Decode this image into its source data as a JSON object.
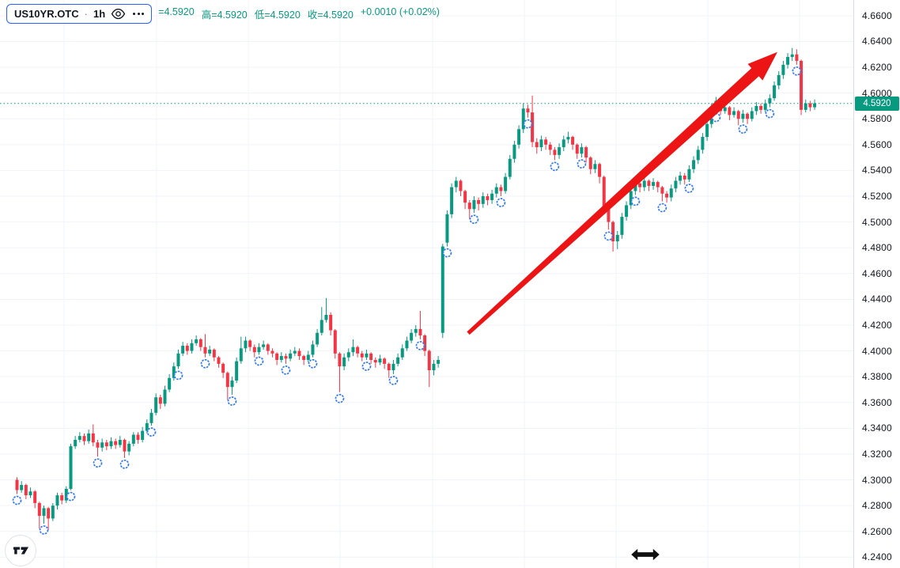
{
  "header": {
    "symbol": "US10YR.OTC",
    "separator": "·",
    "interval": "1h",
    "eye_icon": "eye-icon",
    "more_icon": "more-dots-icon",
    "ohlc_items": [
      {
        "label": "",
        "value": "4.5920"
      },
      {
        "label": "高",
        "value": "4.5920"
      },
      {
        "label": "低",
        "value": "4.5920"
      },
      {
        "label": "收",
        "value": "4.5920"
      }
    ],
    "change": "+0.0010 (+0.02%)"
  },
  "colors": {
    "up": "#089981",
    "down": "#f23645",
    "grid": "#f0f3fa",
    "axis_text": "#131722",
    "accent_blue": "#2962ff",
    "arrow_red": "#ec1414",
    "badge_bg": "#089981",
    "dotted_line": "#089981"
  },
  "chart_data": {
    "type": "candlestick",
    "title": "US10YR.OTC 1h candlestick chart",
    "ylim": [
      4.2316,
      4.6722
    ],
    "y_tick_values": [
      4.66,
      4.64,
      4.62,
      4.6,
      4.58,
      4.56,
      4.54,
      4.52,
      4.5,
      4.48,
      4.46,
      4.44,
      4.42,
      4.4,
      4.38,
      4.36,
      4.34,
      4.32,
      4.3,
      4.28,
      4.26,
      4.24
    ],
    "tick_decimals": 4,
    "last_price": 4.592,
    "last_price_label": "4.5920",
    "grid_on": true,
    "x_start": 21.5,
    "x_step": 5.666,
    "v_gridlines_x": [
      81,
      198,
      314,
      430,
      547,
      663,
      779,
      895,
      1011
    ],
    "markers": {
      "shape": "circle",
      "color": "#3179f5",
      "indices": [
        0,
        6,
        12,
        18,
        24,
        30,
        36,
        42,
        48,
        54,
        60,
        66,
        72,
        78,
        84,
        90,
        96,
        102,
        108,
        114,
        120,
        126,
        132,
        138,
        144,
        150,
        156,
        162,
        168,
        174
      ]
    },
    "annotation_arrow": {
      "from": {
        "i": 100.7,
        "price": 4.4137
      },
      "to": {
        "i": 169.7,
        "price": 4.6319
      }
    },
    "candles": [
      [
        4.3,
        4.302,
        4.289,
        4.292
      ],
      [
        4.292,
        4.299,
        4.29,
        4.296
      ],
      [
        4.296,
        4.297,
        4.285,
        4.288
      ],
      [
        4.288,
        4.294,
        4.286,
        4.291
      ],
      [
        4.291,
        4.292,
        4.278,
        4.282
      ],
      [
        4.282,
        4.283,
        4.262,
        4.272
      ],
      [
        4.272,
        4.28,
        4.266,
        4.278
      ],
      [
        4.278,
        4.279,
        4.261,
        4.27
      ],
      [
        4.27,
        4.282,
        4.268,
        4.28
      ],
      [
        4.28,
        4.29,
        4.277,
        4.288
      ],
      [
        4.288,
        4.29,
        4.281,
        4.284
      ],
      [
        4.284,
        4.295,
        4.282,
        4.293
      ],
      [
        4.293,
        4.328,
        4.292,
        4.326
      ],
      [
        4.326,
        4.334,
        4.324,
        4.331
      ],
      [
        4.331,
        4.337,
        4.329,
        4.334
      ],
      [
        4.334,
        4.336,
        4.327,
        4.33
      ],
      [
        4.33,
        4.339,
        4.328,
        4.336
      ],
      [
        4.336,
        4.343,
        4.326,
        4.329
      ],
      [
        4.329,
        4.331,
        4.318,
        4.325
      ],
      [
        4.325,
        4.332,
        4.322,
        4.329
      ],
      [
        4.329,
        4.331,
        4.323,
        4.326
      ],
      [
        4.326,
        4.333,
        4.324,
        4.33
      ],
      [
        4.33,
        4.332,
        4.324,
        4.327
      ],
      [
        4.327,
        4.334,
        4.325,
        4.331
      ],
      [
        4.331,
        4.332,
        4.317,
        4.322
      ],
      [
        4.322,
        4.33,
        4.319,
        4.328
      ],
      [
        4.328,
        4.337,
        4.326,
        4.335
      ],
      [
        4.335,
        4.337,
        4.328,
        4.331
      ],
      [
        4.331,
        4.341,
        4.329,
        4.338
      ],
      [
        4.338,
        4.347,
        4.336,
        4.344
      ],
      [
        4.344,
        4.355,
        4.342,
        4.352
      ],
      [
        4.352,
        4.367,
        4.35,
        4.364
      ],
      [
        4.364,
        4.366,
        4.355,
        4.359
      ],
      [
        4.359,
        4.373,
        4.357,
        4.37
      ],
      [
        4.37,
        4.382,
        4.368,
        4.379
      ],
      [
        4.379,
        4.391,
        4.377,
        4.388
      ],
      [
        4.388,
        4.401,
        4.386,
        4.398
      ],
      [
        4.398,
        4.407,
        4.396,
        4.404
      ],
      [
        4.404,
        4.406,
        4.397,
        4.4
      ],
      [
        4.4,
        4.409,
        4.398,
        4.406
      ],
      [
        4.406,
        4.412,
        4.404,
        4.409
      ],
      [
        4.409,
        4.41,
        4.4,
        4.403
      ],
      [
        4.403,
        4.413,
        4.395,
        4.398
      ],
      [
        4.398,
        4.404,
        4.396,
        4.401
      ],
      [
        4.401,
        4.402,
        4.392,
        4.395
      ],
      [
        4.395,
        4.396,
        4.387,
        4.39
      ],
      [
        4.39,
        4.391,
        4.379,
        4.383
      ],
      [
        4.383,
        4.384,
        4.362,
        4.372
      ],
      [
        4.372,
        4.38,
        4.366,
        4.377
      ],
      [
        4.377,
        4.395,
        4.375,
        4.392
      ],
      [
        4.392,
        4.411,
        4.39,
        4.402
      ],
      [
        4.402,
        4.411,
        4.399,
        4.408
      ],
      [
        4.408,
        4.409,
        4.4,
        4.403
      ],
      [
        4.403,
        4.405,
        4.395,
        4.399
      ],
      [
        4.399,
        4.406,
        4.397,
        4.403
      ],
      [
        4.403,
        4.408,
        4.401,
        4.405
      ],
      [
        4.405,
        4.406,
        4.397,
        4.4
      ],
      [
        4.4,
        4.402,
        4.395,
        4.398
      ],
      [
        4.398,
        4.399,
        4.389,
        4.393
      ],
      [
        4.393,
        4.399,
        4.391,
        4.396
      ],
      [
        4.396,
        4.398,
        4.39,
        4.394
      ],
      [
        4.394,
        4.401,
        4.392,
        4.398
      ],
      [
        4.398,
        4.403,
        4.396,
        4.4
      ],
      [
        4.4,
        4.402,
        4.393,
        4.396
      ],
      [
        4.396,
        4.397,
        4.389,
        4.393
      ],
      [
        4.393,
        4.4,
        4.391,
        4.397
      ],
      [
        4.397,
        4.408,
        4.395,
        4.405
      ],
      [
        4.405,
        4.417,
        4.403,
        4.414
      ],
      [
        4.414,
        4.434,
        4.412,
        4.424
      ],
      [
        4.424,
        4.441,
        4.422,
        4.428
      ],
      [
        4.428,
        4.43,
        4.412,
        4.416
      ],
      [
        4.416,
        4.417,
        4.394,
        4.398
      ],
      [
        4.398,
        4.399,
        4.368,
        4.388
      ],
      [
        4.388,
        4.398,
        4.385,
        4.395
      ],
      [
        4.395,
        4.402,
        4.392,
        4.399
      ],
      [
        4.399,
        4.409,
        4.396,
        4.403
      ],
      [
        4.403,
        4.404,
        4.395,
        4.398
      ],
      [
        4.398,
        4.4,
        4.392,
        4.395
      ],
      [
        4.395,
        4.401,
        4.393,
        4.398
      ],
      [
        4.398,
        4.399,
        4.39,
        4.393
      ],
      [
        4.393,
        4.395,
        4.387,
        4.391
      ],
      [
        4.391,
        4.397,
        4.389,
        4.394
      ],
      [
        4.394,
        4.395,
        4.386,
        4.39
      ],
      [
        4.39,
        4.391,
        4.379,
        4.385
      ],
      [
        4.385,
        4.393,
        4.382,
        4.39
      ],
      [
        4.39,
        4.398,
        4.388,
        4.395
      ],
      [
        4.395,
        4.405,
        4.393,
        4.402
      ],
      [
        4.402,
        4.411,
        4.4,
        4.408
      ],
      [
        4.408,
        4.417,
        4.406,
        4.414
      ],
      [
        4.414,
        4.42,
        4.411,
        4.417
      ],
      [
        4.417,
        4.431,
        4.409,
        4.412
      ],
      [
        4.412,
        4.413,
        4.396,
        4.4
      ],
      [
        4.4,
        4.401,
        4.372,
        4.385
      ],
      [
        4.385,
        4.393,
        4.381,
        4.39
      ],
      [
        4.39,
        4.396,
        4.387,
        4.393
      ],
      [
        4.414,
        4.483,
        4.41,
        4.481
      ],
      [
        4.484,
        4.509,
        4.481,
        4.506
      ],
      [
        4.506,
        4.53,
        4.503,
        4.527
      ],
      [
        4.527,
        4.535,
        4.523,
        4.532
      ],
      [
        4.532,
        4.533,
        4.52,
        4.524
      ],
      [
        4.524,
        4.525,
        4.51,
        4.515
      ],
      [
        4.515,
        4.517,
        4.502,
        4.51
      ],
      [
        4.51,
        4.52,
        4.507,
        4.517
      ],
      [
        4.517,
        4.519,
        4.509,
        4.514
      ],
      [
        4.514,
        4.523,
        4.511,
        4.52
      ],
      [
        4.52,
        4.522,
        4.513,
        4.517
      ],
      [
        4.517,
        4.525,
        4.514,
        4.522
      ],
      [
        4.522,
        4.53,
        4.519,
        4.527
      ],
      [
        4.527,
        4.529,
        4.52,
        4.524
      ],
      [
        4.524,
        4.538,
        4.522,
        4.535
      ],
      [
        4.535,
        4.552,
        4.533,
        4.549
      ],
      [
        4.549,
        4.563,
        4.546,
        4.56
      ],
      [
        4.56,
        4.575,
        4.557,
        4.572
      ],
      [
        4.572,
        4.592,
        4.569,
        4.588
      ],
      [
        4.588,
        4.591,
        4.581,
        4.585
      ],
      [
        4.585,
        4.598,
        4.558,
        4.562
      ],
      [
        4.562,
        4.565,
        4.553,
        4.558
      ],
      [
        4.558,
        4.567,
        4.555,
        4.564
      ],
      [
        4.564,
        4.566,
        4.556,
        4.56
      ],
      [
        4.56,
        4.562,
        4.552,
        4.556
      ],
      [
        4.556,
        4.558,
        4.548,
        4.552
      ],
      [
        4.552,
        4.561,
        4.549,
        4.558
      ],
      [
        4.558,
        4.567,
        4.555,
        4.564
      ],
      [
        4.564,
        4.57,
        4.561,
        4.566
      ],
      [
        4.566,
        4.567,
        4.556,
        4.56
      ],
      [
        4.56,
        4.561,
        4.549,
        4.553
      ],
      [
        4.553,
        4.561,
        4.55,
        4.558
      ],
      [
        4.558,
        4.559,
        4.546,
        4.55
      ],
      [
        4.55,
        4.551,
        4.537,
        4.541
      ],
      [
        4.541,
        4.548,
        4.538,
        4.545
      ],
      [
        4.545,
        4.546,
        4.53,
        4.535
      ],
      [
        4.535,
        4.536,
        4.507,
        4.512
      ],
      [
        4.512,
        4.513,
        4.494,
        4.5
      ],
      [
        4.5,
        4.501,
        4.477,
        4.485
      ],
      [
        4.485,
        4.493,
        4.479,
        4.49
      ],
      [
        4.49,
        4.507,
        4.487,
        4.504
      ],
      [
        4.504,
        4.516,
        4.501,
        4.513
      ],
      [
        4.513,
        4.527,
        4.51,
        4.524
      ],
      [
        4.524,
        4.533,
        4.521,
        4.53
      ],
      [
        4.53,
        4.532,
        4.523,
        4.527
      ],
      [
        4.527,
        4.535,
        4.524,
        4.532
      ],
      [
        4.532,
        4.533,
        4.524,
        4.528
      ],
      [
        4.528,
        4.534,
        4.525,
        4.531
      ],
      [
        4.531,
        4.532,
        4.523,
        4.527
      ],
      [
        4.527,
        4.528,
        4.516,
        4.522
      ],
      [
        4.522,
        4.524,
        4.515,
        4.519
      ],
      [
        4.519,
        4.529,
        4.516,
        4.526
      ],
      [
        4.526,
        4.535,
        4.523,
        4.532
      ],
      [
        4.532,
        4.539,
        4.529,
        4.536
      ],
      [
        4.536,
        4.538,
        4.529,
        4.533
      ],
      [
        4.533,
        4.544,
        4.531,
        4.541
      ],
      [
        4.541,
        4.551,
        4.538,
        4.548
      ],
      [
        4.548,
        4.559,
        4.545,
        4.556
      ],
      [
        4.556,
        4.569,
        4.553,
        4.566
      ],
      [
        4.566,
        4.579,
        4.563,
        4.576
      ],
      [
        4.576,
        4.592,
        4.573,
        4.589
      ],
      [
        4.589,
        4.597,
        4.586,
        4.594
      ],
      [
        4.594,
        4.595,
        4.583,
        4.586
      ],
      [
        4.586,
        4.592,
        4.584,
        4.589
      ],
      [
        4.589,
        4.59,
        4.579,
        4.583
      ],
      [
        4.583,
        4.589,
        4.581,
        4.586
      ],
      [
        4.586,
        4.587,
        4.575,
        4.58
      ],
      [
        4.58,
        4.587,
        4.577,
        4.584
      ],
      [
        4.584,
        4.585,
        4.576,
        4.58
      ],
      [
        4.58,
        4.589,
        4.578,
        4.586
      ],
      [
        4.586,
        4.593,
        4.583,
        4.59
      ],
      [
        4.59,
        4.592,
        4.584,
        4.587
      ],
      [
        4.587,
        4.595,
        4.585,
        4.592
      ],
      [
        4.592,
        4.599,
        4.589,
        4.596
      ],
      [
        4.596,
        4.609,
        4.594,
        4.606
      ],
      [
        4.606,
        4.617,
        4.603,
        4.614
      ],
      [
        4.614,
        4.625,
        4.611,
        4.622
      ],
      [
        4.622,
        4.631,
        4.619,
        4.628
      ],
      [
        4.628,
        4.635,
        4.625,
        4.63
      ],
      [
        4.63,
        4.634,
        4.622,
        4.625
      ],
      [
        4.625,
        4.626,
        4.583,
        4.587
      ],
      [
        4.587,
        4.595,
        4.585,
        4.592
      ],
      [
        4.592,
        4.594,
        4.586,
        4.589
      ],
      [
        4.589,
        4.595,
        4.587,
        4.592
      ]
    ]
  }
}
